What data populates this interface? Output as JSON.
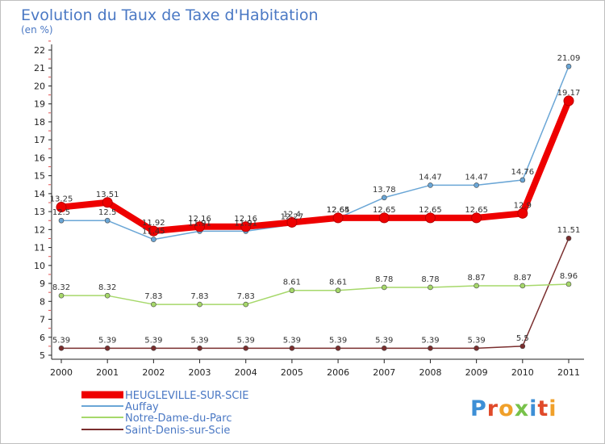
{
  "chart_data": {
    "type": "line",
    "title": "Evolution du Taux de Taxe d'Habitation",
    "subtitle": "(en %)",
    "xlabel": "",
    "ylabel": "",
    "x": [
      "2000",
      "2001",
      "2002",
      "2003",
      "2004",
      "2005",
      "2006",
      "2007",
      "2008",
      "2009",
      "2010",
      "2011"
    ],
    "y_ticks": [
      "5",
      "6",
      "7",
      "8",
      "9",
      "10",
      "11",
      "12",
      "13",
      "14",
      "15",
      "16",
      "17",
      "18",
      "19",
      "20",
      "21",
      "22"
    ],
    "ylim": [
      5,
      22
    ],
    "grid": false,
    "legend_position": "bottom-left",
    "series": [
      {
        "name": "HEUGLEVILLE-SUR-SCIE",
        "color": "#ee0000",
        "emphasis": true,
        "values": [
          13.25,
          13.51,
          11.92,
          12.16,
          12.16,
          12.4,
          12.65,
          12.65,
          12.65,
          12.65,
          12.9,
          19.17
        ],
        "labels": [
          "13.25",
          "13.51",
          "11.92",
          "12.16",
          "12.16",
          "12.4",
          "12.65",
          "12.65",
          "12.65",
          "12.65",
          "12.9",
          "19.17"
        ]
      },
      {
        "name": "Auffay",
        "color": "#6aa6d6",
        "values": [
          12.5,
          12.5,
          11.45,
          11.91,
          11.91,
          12.27,
          12.64,
          13.78,
          14.47,
          14.47,
          14.76,
          21.09
        ],
        "labels": [
          "12.5",
          "12.5",
          "11.45",
          "11.91",
          "11.91",
          "12.27",
          "12.64",
          "13.78",
          "14.47",
          "14.47",
          "14.76",
          "21.09"
        ]
      },
      {
        "name": "Notre-Dame-du-Parc",
        "color": "#a6d86a",
        "values": [
          8.32,
          8.32,
          7.83,
          7.83,
          7.83,
          8.61,
          8.61,
          8.78,
          8.78,
          8.87,
          8.87,
          8.96
        ],
        "labels": [
          "8.32",
          "8.32",
          "7.83",
          "7.83",
          "7.83",
          "8.61",
          "8.61",
          "8.78",
          "8.78",
          "8.87",
          "8.87",
          "8.96"
        ]
      },
      {
        "name": "Saint-Denis-sur-Scie",
        "color": "#7a2e2e",
        "values": [
          5.39,
          5.39,
          5.39,
          5.39,
          5.39,
          5.39,
          5.39,
          5.39,
          5.39,
          5.39,
          5.5,
          11.51
        ],
        "labels": [
          "5.39",
          "5.39",
          "5.39",
          "5.39",
          "5.39",
          "5.39",
          "5.39",
          "5.39",
          "5.39",
          "5.39",
          "5.5",
          "11.51"
        ]
      }
    ]
  },
  "watermark": {
    "text": "Proxiti",
    "colors": [
      "#3d8fd6",
      "#e04a2a",
      "#f0a02a",
      "#78c24a",
      "#3d8fd6",
      "#e04a2a",
      "#f0a02a"
    ]
  }
}
